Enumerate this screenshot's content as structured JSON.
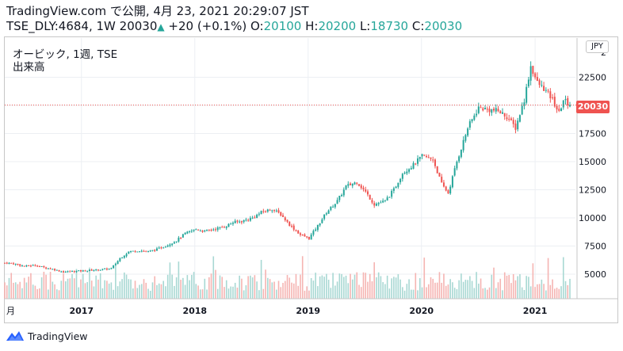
{
  "header": {
    "line1": "TradingView.com で公開, 4月 23, 2021 20:29:07 JST",
    "symbol": "TSE_DLY:4684, 1W",
    "last": "20030",
    "arrow": "▲",
    "change": "+20 (+0.1%)",
    "o_label": "O:",
    "o_value": "20100",
    "h_label": "H:",
    "h_value": "20200",
    "l_label": "L:",
    "l_value": "18730",
    "c_label": "C:",
    "c_value": "20030"
  },
  "legend": {
    "title": "オービック, 1週, TSE",
    "volume": "出来高"
  },
  "currency": "JPY",
  "last_price_label": "20030",
  "footer": {
    "logo_icon": "tradingview-logo-icon",
    "brand": "TradingView"
  },
  "colors": {
    "up": "#26a69a",
    "down": "#ef5350",
    "vol_up": "#a8d8d3",
    "vol_down": "#f5b4b2",
    "grid": "#eceff3",
    "price_line": "#ef5350"
  },
  "chart_data": [
    {
      "type": "candlestick",
      "x_ticks": [
        "月",
        "2017",
        "2018",
        "2019",
        "2020",
        "2021"
      ],
      "y_ticks": [
        5000,
        7500,
        10000,
        12500,
        15000,
        17500,
        20000,
        22500
      ],
      "y_top_tick_label": "2",
      "ylim": [
        3000,
        25000
      ],
      "grid": true,
      "last_close": 20030,
      "weekly_close_path": [
        [
          "2016-05-06",
          6000
        ],
        [
          "2016-06-03",
          5900
        ],
        [
          "2016-07-01",
          5700
        ],
        [
          "2016-08-05",
          5800
        ],
        [
          "2016-09-02",
          5600
        ],
        [
          "2016-10-07",
          5400
        ],
        [
          "2016-11-04",
          5200
        ],
        [
          "2016-12-02",
          5250
        ],
        [
          "2017-01-06",
          5300
        ],
        [
          "2017-02-03",
          5350
        ],
        [
          "2017-03-03",
          5400
        ],
        [
          "2017-04-07",
          5500
        ],
        [
          "2017-05-05",
          6400
        ],
        [
          "2017-06-02",
          7000
        ],
        [
          "2017-07-07",
          7100
        ],
        [
          "2017-08-04",
          7000
        ],
        [
          "2017-09-01",
          7200
        ],
        [
          "2017-10-06",
          7600
        ],
        [
          "2017-11-03",
          8000
        ],
        [
          "2017-12-01",
          8600
        ],
        [
          "2018-01-05",
          9000
        ],
        [
          "2018-02-02",
          8800
        ],
        [
          "2018-03-02",
          9000
        ],
        [
          "2018-04-06",
          9200
        ],
        [
          "2018-05-04",
          9600
        ],
        [
          "2018-06-01",
          9700
        ],
        [
          "2018-07-06",
          10000
        ],
        [
          "2018-08-03",
          10500
        ],
        [
          "2018-09-07",
          10800
        ],
        [
          "2018-10-05",
          10300
        ],
        [
          "2018-11-02",
          9400
        ],
        [
          "2018-12-07",
          8500
        ],
        [
          "2019-01-04",
          8200
        ],
        [
          "2019-02-01",
          9300
        ],
        [
          "2019-03-01",
          10500
        ],
        [
          "2019-04-05",
          11500
        ],
        [
          "2019-05-03",
          12800
        ],
        [
          "2019-06-07",
          13200
        ],
        [
          "2019-07-05",
          12300
        ],
        [
          "2019-08-02",
          11200
        ],
        [
          "2019-09-06",
          11500
        ],
        [
          "2019-10-04",
          12500
        ],
        [
          "2019-11-01",
          14000
        ],
        [
          "2019-12-06",
          14700
        ],
        [
          "2020-01-03",
          15500
        ],
        [
          "2020-02-07",
          15200
        ],
        [
          "2020-03-06",
          13000
        ],
        [
          "2020-03-27",
          12200
        ],
        [
          "2020-04-24",
          15000
        ],
        [
          "2020-05-29",
          18000
        ],
        [
          "2020-07-03",
          19800
        ],
        [
          "2020-08-07",
          19600
        ],
        [
          "2020-09-04",
          19500
        ],
        [
          "2020-10-02",
          19000
        ],
        [
          "2020-10-30",
          18000
        ],
        [
          "2020-11-27",
          20500
        ],
        [
          "2020-12-18",
          23500
        ],
        [
          "2021-01-08",
          22000
        ],
        [
          "2021-01-29",
          21500
        ],
        [
          "2021-02-26",
          20500
        ],
        [
          "2021-03-19",
          19300
        ],
        [
          "2021-04-02",
          20500
        ],
        [
          "2021-04-23",
          20030
        ]
      ]
    }
  ]
}
